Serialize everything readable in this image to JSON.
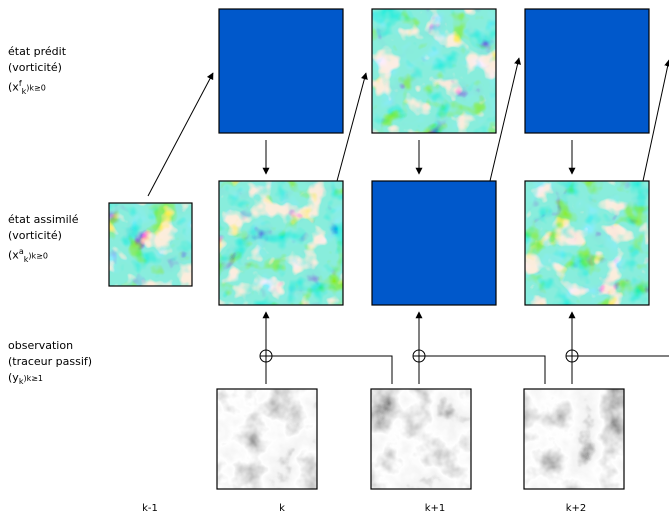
{
  "rows": {
    "predicted": {
      "line1": "état prédit",
      "line2": "(vorticité)",
      "symbol": "(x",
      "sup": "f",
      "sub": "k",
      "range": ")k≥0"
    },
    "assimilated": {
      "line1": "état assimilé",
      "line2": "(vorticité)",
      "symbol": "(x",
      "sup": "a",
      "sub": "k",
      "range": ")k≥0"
    },
    "observation": {
      "line1": "observation",
      "line2": "(traceur passif)",
      "symbol": "(y",
      "sub": "k",
      "range": ")k≥1"
    }
  },
  "time_labels": [
    "k-1",
    "k",
    "k+1",
    "k+2"
  ],
  "colors": {
    "vorticity_bg": "#33d6c2",
    "frame": "#000000"
  }
}
